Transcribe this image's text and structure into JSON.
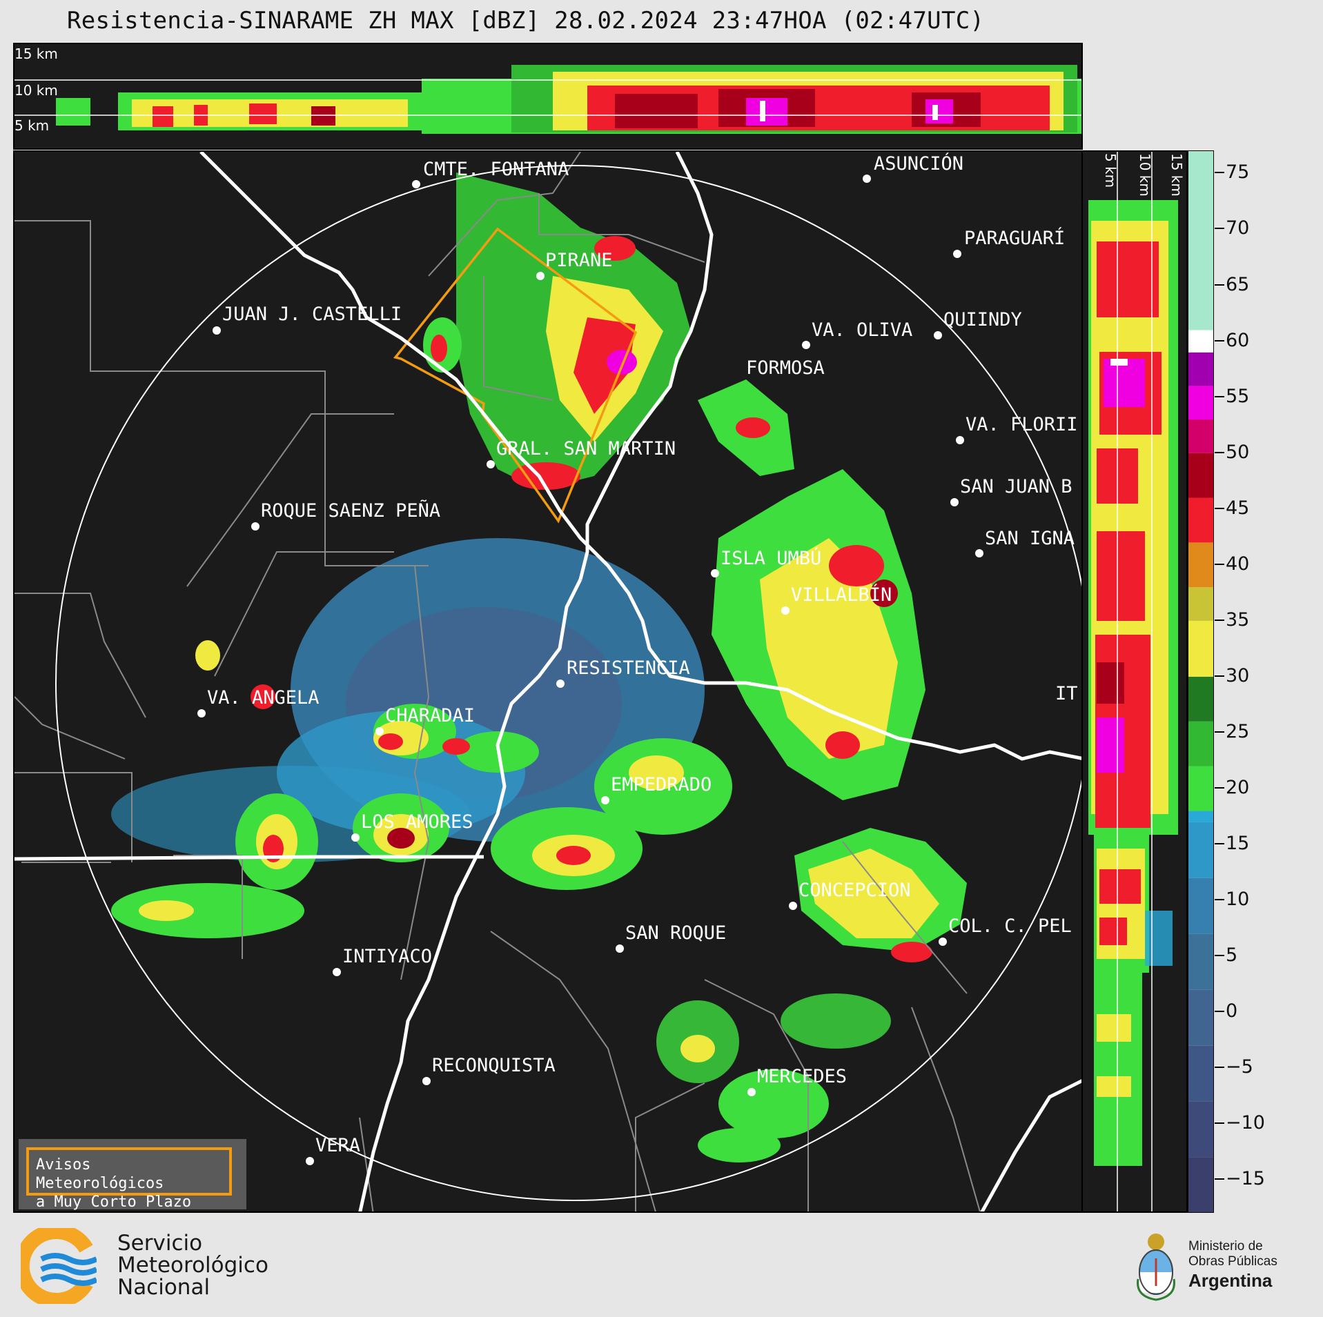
{
  "title": "Resistencia-SINARAME ZH MAX [dBZ] 28.02.2024 23:47HOA (02:47UTC)",
  "altitude_labels": [
    "15 km",
    "10 km",
    "5 km"
  ],
  "side_altitude_labels": [
    "5 km",
    "10 km",
    "15 km"
  ],
  "colorbar": {
    "ticks": [
      "75",
      "70",
      "65",
      "60",
      "55",
      "50",
      "45",
      "40",
      "35",
      "30",
      "25",
      "20",
      "15",
      "10",
      "5",
      "0",
      "−5",
      "−10",
      "−15"
    ],
    "range": [
      -18,
      77
    ],
    "bands": [
      {
        "from": -18,
        "to": -13,
        "color": "#3b3f6b"
      },
      {
        "from": -13,
        "to": -8,
        "color": "#3e4a7a"
      },
      {
        "from": -8,
        "to": -3,
        "color": "#3f5787"
      },
      {
        "from": -3,
        "to": 2,
        "color": "#3f6590"
      },
      {
        "from": 2,
        "to": 7,
        "color": "#3c7199"
      },
      {
        "from": 7,
        "to": 12,
        "color": "#3680b0"
      },
      {
        "from": 12,
        "to": 17,
        "color": "#2e98c8"
      },
      {
        "from": 17,
        "to": 18,
        "color": "#29a9d8"
      },
      {
        "from": 18,
        "to": 22,
        "color": "#3fde3f"
      },
      {
        "from": 22,
        "to": 26,
        "color": "#33b833"
      },
      {
        "from": 26,
        "to": 30,
        "color": "#1f7a22"
      },
      {
        "from": 30,
        "to": 35,
        "color": "#f0ea40"
      },
      {
        "from": 35,
        "to": 38,
        "color": "#c9c435"
      },
      {
        "from": 38,
        "to": 42,
        "color": "#e08a1c"
      },
      {
        "from": 42,
        "to": 46,
        "color": "#f01e2c"
      },
      {
        "from": 46,
        "to": 50,
        "color": "#a8001a"
      },
      {
        "from": 50,
        "to": 53,
        "color": "#d4006a"
      },
      {
        "from": 53,
        "to": 56,
        "color": "#f000e0"
      },
      {
        "from": 56,
        "to": 59,
        "color": "#a000b0"
      },
      {
        "from": 59,
        "to": 61,
        "color": "#ffffff"
      },
      {
        "from": 61,
        "to": 77,
        "color": "#a6e8cc"
      }
    ]
  },
  "cities": [
    {
      "name": "CMTE. FONTANA"
    },
    {
      "name": "ASUNCIÓN"
    },
    {
      "name": "PARAGUARÍ"
    },
    {
      "name": "PIRANE"
    },
    {
      "name": "JUAN J. CASTELLI"
    },
    {
      "name": "VA. OLIVA"
    },
    {
      "name": "QUIINDY"
    },
    {
      "name": "FORMOSA"
    },
    {
      "name": "VA. FLORII"
    },
    {
      "name": "GRAL. SAN MARTIN"
    },
    {
      "name": "SAN JUAN B"
    },
    {
      "name": "ROQUE SAENZ PEÑA"
    },
    {
      "name": "SAN IGNA"
    },
    {
      "name": "ISLA UMBÚ"
    },
    {
      "name": "VILLALBÍN"
    },
    {
      "name": "RESISTENCIA"
    },
    {
      "name": "VA. ANGELA"
    },
    {
      "name": "CHARADAI"
    },
    {
      "name": "IT"
    },
    {
      "name": "EMPEDRADO"
    },
    {
      "name": "LOS AMORES"
    },
    {
      "name": "CONCEPCION"
    },
    {
      "name": "SAN ROQUE"
    },
    {
      "name": "COL. C. PEL"
    },
    {
      "name": "INTIYACO"
    },
    {
      "name": "RECONQUISTA"
    },
    {
      "name": "MERCEDES"
    },
    {
      "name": "VERA"
    }
  ],
  "notice": {
    "line1": "Avisos Meteorológicos",
    "line2": "a Muy Corto Plazo"
  },
  "logo_smn": {
    "line1": "Servicio",
    "line2": "Meteorológico",
    "line3": "Nacional"
  },
  "logo_ministerio": {
    "line1": "Ministerio de",
    "line2": "Obras Públicas",
    "line3": "Argentina"
  },
  "colors": {
    "background": "#1b1b1b",
    "warning_polygon": "#f39c12",
    "coverage_ring": "#ffffff"
  }
}
